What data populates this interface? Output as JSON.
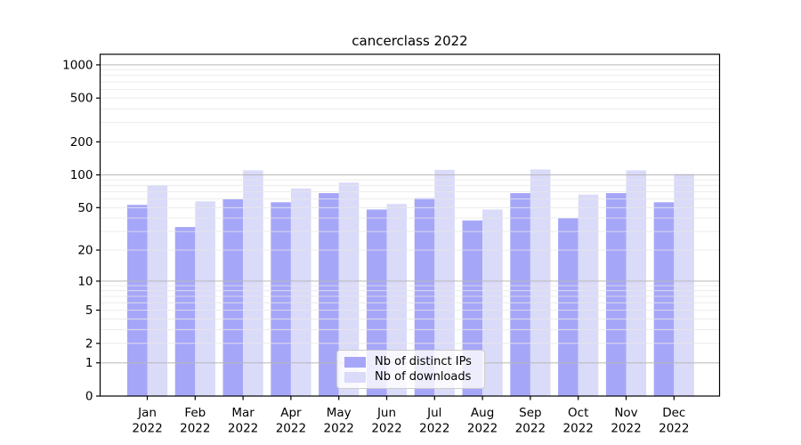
{
  "title": "cancerclass 2022",
  "chart_data": {
    "type": "bar",
    "title": "cancerclass 2022",
    "x_year": "2022",
    "x_categories": [
      "Jan",
      "Feb",
      "Mar",
      "Apr",
      "May",
      "Jun",
      "Jul",
      "Aug",
      "Sep",
      "Oct",
      "Nov",
      "Dec"
    ],
    "yscale": "log1p",
    "yticks": [
      1000,
      500,
      200,
      100,
      50,
      20,
      10,
      5,
      2,
      1,
      0
    ],
    "major_grid_values": [
      1000,
      100,
      10,
      1
    ],
    "ylim": [
      0,
      1200
    ],
    "grid": "both",
    "legend_position": "lower center",
    "series": [
      {
        "name": "Nb of distinct IPs",
        "color": "#a6a6f9",
        "values": [
          53,
          33,
          60,
          56,
          68,
          48,
          61,
          38,
          68,
          40,
          68,
          56
        ]
      },
      {
        "name": "Nb of downloads",
        "color": "#dadaf9",
        "values": [
          80,
          57,
          110,
          75,
          85,
          54,
          111,
          48,
          112,
          66,
          110,
          102
        ]
      }
    ]
  },
  "colors": {
    "major_grid": "#b8b8b8",
    "minor_grid": "#e7e7e7",
    "axis": "#000000",
    "background": "#ffffff"
  }
}
